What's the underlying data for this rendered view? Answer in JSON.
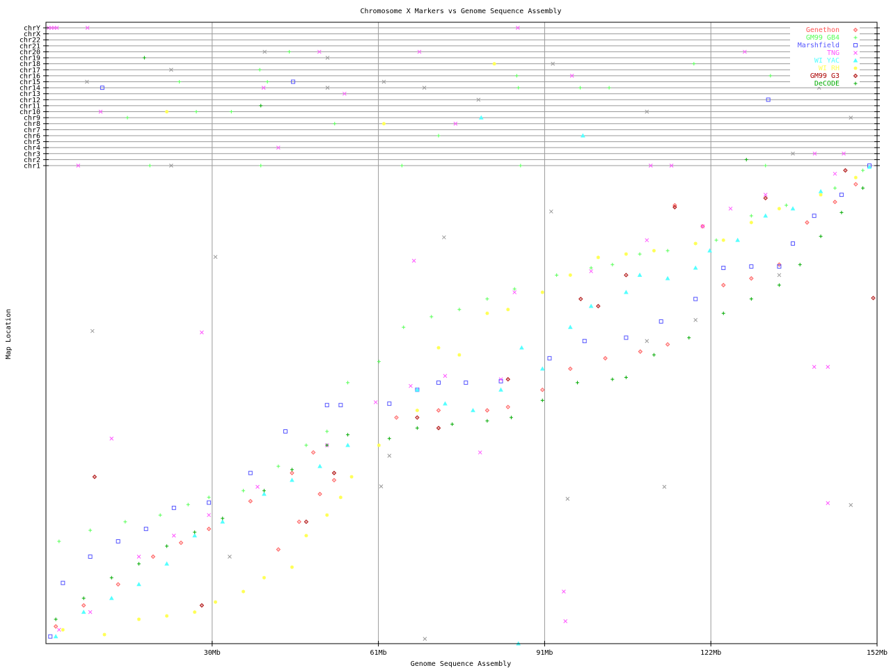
{
  "chart_data": {
    "type": "scatter",
    "title": "Chromosome X Markers vs Genome Sequence Assembly",
    "xlabel": "Genome Sequence Assembly",
    "ylabel": "Map Location",
    "xlim": [
      0,
      152
    ],
    "ylim": [
      0,
      100
    ],
    "x_ticks": [
      "30Mb",
      "61Mb",
      "91Mb",
      "122Mb",
      "152Mb"
    ],
    "grid": true,
    "legend_position": "top-right",
    "chromosome_rows": [
      "chrY",
      "chrX",
      "chr22",
      "chr21",
      "chr20",
      "chr19",
      "chr18",
      "chr17",
      "chr16",
      "chr15",
      "chr14",
      "chr13",
      "chr12",
      "chr11",
      "chr10",
      "chr9",
      "chr8",
      "chr7",
      "chr6",
      "chr5",
      "chr4",
      "chr3",
      "chr2",
      "chr1"
    ],
    "series": [
      {
        "name": "Genethon",
        "color": "#ff5555",
        "marker": "diamond",
        "points": [
          [
            1.8,
            3.6
          ],
          [
            6.9,
            8.0
          ],
          [
            13.2,
            12.4
          ],
          [
            19.6,
            18.2
          ],
          [
            24.7,
            21.1
          ],
          [
            29.8,
            24.0
          ],
          [
            37.4,
            29.8
          ],
          [
            45.0,
            35.7
          ],
          [
            48.9,
            40.0
          ],
          [
            42.5,
            19.7
          ],
          [
            46.3,
            25.5
          ],
          [
            50.1,
            31.3
          ],
          [
            52.7,
            34.2
          ],
          [
            64.1,
            47.3
          ],
          [
            71.8,
            48.8
          ],
          [
            80.7,
            48.8
          ],
          [
            84.5,
            49.5
          ],
          [
            90.8,
            53.1
          ],
          [
            95.9,
            57.5
          ],
          [
            102.3,
            59.7
          ],
          [
            108.7,
            61.1
          ],
          [
            113.7,
            62.6
          ],
          [
            123.9,
            75.0
          ],
          [
            129.0,
            76.4
          ],
          [
            134.1,
            79.3
          ],
          [
            139.2,
            88.1
          ],
          [
            144.3,
            92.4
          ],
          [
            148.1,
            96.1
          ],
          [
            115.0,
            91.7
          ],
          [
            120.1,
            87.3
          ]
        ]
      },
      {
        "name": "GM99 GB4",
        "color": "#55ff55",
        "marker": "plus",
        "points": [
          [
            2.4,
            21.4
          ],
          [
            8.1,
            23.7
          ],
          [
            14.5,
            25.5
          ],
          [
            20.9,
            26.9
          ],
          [
            26.0,
            29.1
          ],
          [
            29.8,
            30.6
          ],
          [
            36.1,
            32.0
          ],
          [
            42.5,
            37.1
          ],
          [
            47.6,
            41.5
          ],
          [
            51.4,
            44.4
          ],
          [
            55.2,
            54.6
          ],
          [
            60.9,
            59.0
          ],
          [
            65.4,
            66.2
          ],
          [
            70.5,
            68.4
          ],
          [
            75.6,
            69.9
          ],
          [
            80.7,
            72.1
          ],
          [
            85.7,
            74.2
          ],
          [
            93.4,
            77.1
          ],
          [
            99.7,
            78.6
          ],
          [
            103.6,
            79.3
          ],
          [
            108.6,
            81.5
          ],
          [
            113.7,
            82.2
          ],
          [
            118.8,
            83.7
          ],
          [
            122.6,
            84.4
          ],
          [
            129.0,
            89.5
          ],
          [
            135.4,
            91.7
          ],
          [
            144.3,
            95.3
          ],
          [
            149.4,
            99.0
          ]
        ]
      },
      {
        "name": "Marshfield",
        "color": "#5555ff",
        "marker": "square",
        "points": [
          [
            0.8,
            1.5
          ],
          [
            3.1,
            12.7
          ],
          [
            8.1,
            18.2
          ],
          [
            13.2,
            21.4
          ],
          [
            18.3,
            24.0
          ],
          [
            23.4,
            28.4
          ],
          [
            29.8,
            29.5
          ],
          [
            37.4,
            35.7
          ],
          [
            43.8,
            44.4
          ],
          [
            51.4,
            49.9
          ],
          [
            53.9,
            49.9
          ],
          [
            62.8,
            50.2
          ],
          [
            67.9,
            53.1
          ],
          [
            71.8,
            54.6
          ],
          [
            76.8,
            54.6
          ],
          [
            83.2,
            54.9
          ],
          [
            92.1,
            59.7
          ],
          [
            98.5,
            63.3
          ],
          [
            106.1,
            64.0
          ],
          [
            112.5,
            67.4
          ],
          [
            118.8,
            72.1
          ],
          [
            123.9,
            78.6
          ],
          [
            129.0,
            78.9
          ],
          [
            134.1,
            78.9
          ],
          [
            136.6,
            83.7
          ],
          [
            140.5,
            89.5
          ],
          [
            145.5,
            93.9
          ],
          [
            150.6,
            100
          ]
        ]
      },
      {
        "name": "TNG",
        "color": "#ff55ff",
        "marker": "x",
        "points": [
          [
            2.4,
            2.9
          ],
          [
            8.1,
            6.6
          ],
          [
            12.0,
            42.9
          ],
          [
            17.0,
            18.2
          ],
          [
            23.4,
            22.6
          ],
          [
            28.5,
            65.1
          ],
          [
            29.8,
            26.9
          ],
          [
            38.7,
            32.8
          ],
          [
            51.4,
            41.5
          ],
          [
            60.3,
            50.5
          ],
          [
            66.7,
            53.9
          ],
          [
            67.3,
            80.1
          ],
          [
            73.0,
            56.0
          ],
          [
            79.4,
            40.0
          ],
          [
            83.2,
            55.3
          ],
          [
            85.7,
            73.5
          ],
          [
            94.7,
            10.9
          ],
          [
            95.0,
            4.7
          ],
          [
            99.7,
            77.9
          ],
          [
            109.9,
            84.4
          ],
          [
            120.1,
            87.3
          ],
          [
            125.2,
            91.0
          ],
          [
            131.6,
            93.9
          ],
          [
            140.5,
            57.9
          ],
          [
            143.0,
            57.9
          ],
          [
            143.0,
            29.4
          ],
          [
            144.3,
            98.3
          ]
        ]
      },
      {
        "name": "WI YAC",
        "color": "#55ffff",
        "marker": "triangle",
        "points": [
          [
            1.8,
            1.5
          ],
          [
            6.9,
            6.6
          ],
          [
            12.0,
            9.5
          ],
          [
            17.0,
            12.4
          ],
          [
            22.1,
            16.7
          ],
          [
            27.2,
            22.6
          ],
          [
            32.3,
            25.5
          ],
          [
            39.9,
            31.3
          ],
          [
            45.0,
            34.2
          ],
          [
            50.1,
            37.1
          ],
          [
            55.2,
            41.5
          ],
          [
            67.9,
            53.1
          ],
          [
            73.0,
            50.2
          ],
          [
            78.1,
            48.8
          ],
          [
            83.2,
            53.1
          ],
          [
            87.0,
            61.9
          ],
          [
            90.8,
            57.5
          ],
          [
            95.9,
            66.2
          ],
          [
            99.7,
            70.6
          ],
          [
            106.1,
            73.5
          ],
          [
            108.6,
            77.1
          ],
          [
            113.7,
            76.4
          ],
          [
            118.8,
            78.6
          ],
          [
            121.4,
            82.2
          ],
          [
            126.5,
            84.4
          ],
          [
            131.6,
            89.5
          ],
          [
            136.6,
            91.0
          ],
          [
            141.7,
            94.6
          ],
          [
            150.6,
            99.7
          ],
          [
            86.4,
            0
          ]
        ]
      },
      {
        "name": "WI RH",
        "color": "#ffff55",
        "marker": "star",
        "points": [
          [
            3.1,
            2.9
          ],
          [
            10.7,
            1.9
          ],
          [
            17.0,
            5.1
          ],
          [
            22.1,
            5.8
          ],
          [
            27.2,
            6.6
          ],
          [
            31.0,
            8.7
          ],
          [
            36.1,
            10.9
          ],
          [
            39.9,
            13.8
          ],
          [
            45.0,
            16.0
          ],
          [
            47.6,
            22.6
          ],
          [
            51.4,
            26.9
          ],
          [
            53.9,
            30.6
          ],
          [
            55.9,
            34.9
          ],
          [
            60.9,
            41.5
          ],
          [
            67.9,
            48.8
          ],
          [
            71.8,
            61.9
          ],
          [
            75.6,
            60.4
          ],
          [
            80.7,
            69.1
          ],
          [
            84.5,
            69.9
          ],
          [
            90.8,
            73.5
          ],
          [
            95.9,
            77.1
          ],
          [
            101.0,
            80.8
          ],
          [
            106.1,
            81.5
          ],
          [
            111.2,
            82.2
          ],
          [
            118.8,
            83.7
          ],
          [
            123.9,
            84.4
          ],
          [
            129.0,
            88.1
          ],
          [
            134.1,
            91.0
          ],
          [
            141.7,
            93.9
          ],
          [
            148.1,
            97.5
          ]
        ]
      },
      {
        "name": "GM99 G3",
        "color": "#aa0000",
        "marker": "diamond",
        "points": [
          [
            8.9,
            34.9
          ],
          [
            28.5,
            8.0
          ],
          [
            47.6,
            25.5
          ],
          [
            52.7,
            35.7
          ],
          [
            67.9,
            47.3
          ],
          [
            71.8,
            45.1
          ],
          [
            84.5,
            55.3
          ],
          [
            97.8,
            72.1
          ],
          [
            101.0,
            70.6
          ],
          [
            106.1,
            77.1
          ],
          [
            115.0,
            91.3
          ],
          [
            131.6,
            93.2
          ],
          [
            146.2,
            99.0
          ],
          [
            151.3,
            72.3
          ]
        ]
      },
      {
        "name": "DeCODE",
        "color": "#00aa00",
        "marker": "plus",
        "points": [
          [
            1.8,
            5.1
          ],
          [
            6.9,
            9.5
          ],
          [
            12.0,
            13.8
          ],
          [
            17.0,
            16.7
          ],
          [
            22.1,
            20.4
          ],
          [
            27.2,
            23.3
          ],
          [
            32.3,
            26.2
          ],
          [
            39.9,
            32.0
          ],
          [
            45.0,
            36.4
          ],
          [
            51.4,
            41.5
          ],
          [
            55.2,
            43.7
          ],
          [
            62.8,
            42.9
          ],
          [
            67.9,
            45.1
          ],
          [
            74.3,
            45.9
          ],
          [
            80.7,
            46.6
          ],
          [
            85.1,
            47.3
          ],
          [
            90.8,
            50.9
          ],
          [
            97.2,
            54.6
          ],
          [
            103.6,
            55.3
          ],
          [
            106.1,
            55.7
          ],
          [
            111.2,
            60.4
          ],
          [
            117.6,
            64.0
          ],
          [
            123.9,
            69.1
          ],
          [
            129.0,
            72.1
          ],
          [
            134.1,
            75.0
          ],
          [
            137.9,
            79.3
          ],
          [
            141.7,
            85.2
          ],
          [
            145.5,
            90.2
          ],
          [
            149.4,
            95.3
          ]
        ]
      },
      {
        "name": "",
        "color": "#999999",
        "marker": "x",
        "points": [
          [
            8.5,
            65.4
          ],
          [
            31.0,
            80.9
          ],
          [
            72.8,
            85.0
          ],
          [
            61.3,
            32.9
          ],
          [
            69.3,
            1.0
          ],
          [
            92.4,
            90.4
          ],
          [
            95.4,
            30.3
          ],
          [
            113.1,
            32.8
          ],
          [
            147.2,
            29.0
          ],
          [
            33.6,
            18.2
          ],
          [
            62.8,
            39.3
          ],
          [
            118.8,
            67.7
          ],
          [
            134.1,
            77.1
          ],
          [
            109.9,
            63.3
          ]
        ]
      }
    ],
    "chromosome_hits": [
      [
        3,
        "chrY",
        0.5
      ],
      [
        3,
        "chrY",
        1.0
      ],
      [
        3,
        "chrY",
        1.5
      ],
      [
        3,
        "chrY",
        2.0
      ],
      [
        3,
        "chrY",
        7.6
      ],
      [
        3,
        "chrY",
        86.3
      ],
      [
        1,
        "chr20",
        44.5
      ],
      [
        3,
        "chr20",
        50.0
      ],
      [
        8,
        "chr20",
        40.0
      ],
      [
        3,
        "chr20",
        68.3
      ],
      [
        3,
        "chr20",
        127.8
      ],
      [
        7,
        "chr19",
        18.0
      ],
      [
        8,
        "chr19",
        51.5
      ],
      [
        5,
        "chr18",
        82.0
      ],
      [
        8,
        "chr18",
        92.7
      ],
      [
        1,
        "chr18",
        118.5
      ],
      [
        8,
        "chr17",
        22.9
      ],
      [
        1,
        "chr17",
        39.1
      ],
      [
        3,
        "chr16",
        96.2
      ],
      [
        1,
        "chr16",
        86.1
      ],
      [
        1,
        "chr16",
        132.5
      ],
      [
        8,
        "chr15",
        7.5
      ],
      [
        1,
        "chr15",
        24.4
      ],
      [
        2,
        "chr15",
        45.2
      ],
      [
        1,
        "chr15",
        40.5
      ],
      [
        8,
        "chr15",
        61.8
      ],
      [
        1,
        "chr15",
        140.2
      ],
      [
        2,
        "chr14",
        10.3
      ],
      [
        3,
        "chr14",
        39.8
      ],
      [
        8,
        "chr14",
        51.5
      ],
      [
        8,
        "chr14",
        69.2
      ],
      [
        1,
        "chr14",
        86.4
      ],
      [
        1,
        "chr14",
        97.7
      ],
      [
        1,
        "chr14",
        103.0
      ],
      [
        8,
        "chr14",
        141.4
      ],
      [
        3,
        "chr13",
        54.6
      ],
      [
        8,
        "chr12",
        79.1
      ],
      [
        2,
        "chr12",
        132.1
      ],
      [
        7,
        "chr11",
        39.3
      ],
      [
        5,
        "chr10",
        22.1
      ],
      [
        3,
        "chr10",
        10.0
      ],
      [
        1,
        "chr10",
        27.5
      ],
      [
        1,
        "chr10",
        33.9
      ],
      [
        8,
        "chr10",
        109.9
      ],
      [
        1,
        "chr9",
        14.9
      ],
      [
        5,
        "chr8",
        61.8
      ],
      [
        1,
        "chr8",
        52.8
      ],
      [
        3,
        "chr8",
        74.9
      ],
      [
        4,
        "chr9",
        79.6
      ],
      [
        8,
        "chr9",
        147.2
      ],
      [
        1,
        "chr6",
        71.8
      ],
      [
        4,
        "chr6",
        98.2
      ],
      [
        3,
        "chr4",
        42.5
      ],
      [
        8,
        "chr3",
        136.6
      ],
      [
        3,
        "chr3",
        145.9
      ],
      [
        3,
        "chr3",
        140.6
      ],
      [
        7,
        "chr2",
        128.1
      ],
      [
        3,
        "chr1",
        5.9
      ],
      [
        1,
        "chr1",
        19.0
      ],
      [
        8,
        "chr1",
        22.9
      ],
      [
        1,
        "chr1",
        39.3
      ],
      [
        1,
        "chr1",
        65.1
      ],
      [
        1,
        "chr1",
        86.8
      ],
      [
        3,
        "chr1",
        110.6
      ],
      [
        3,
        "chr1",
        114.4
      ],
      [
        1,
        "chr1",
        131.6
      ]
    ]
  }
}
